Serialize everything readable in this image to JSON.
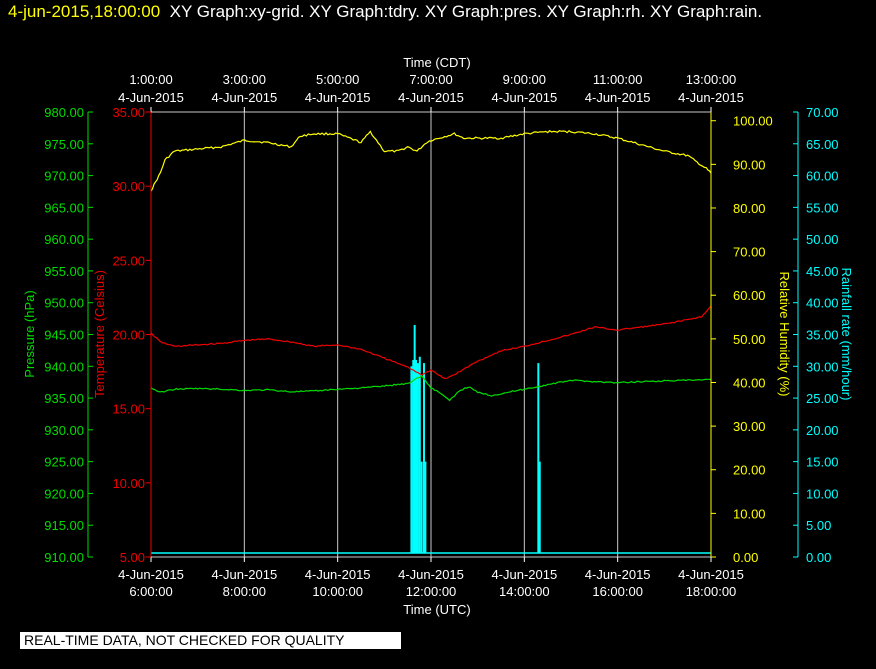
{
  "header": {
    "timestamp": "4-jun-2015,18:00:00",
    "graphs": "XY Graph:xy-grid.  XY Graph:tdry.  XY Graph:pres.  XY Graph:rh.  XY Graph:rain."
  },
  "footer": {
    "quality_notice": "REAL-TIME DATA, NOT CHECKED FOR QUALITY"
  },
  "chart_data": {
    "type": "line",
    "colors": {
      "pressure": "#00dd00",
      "temperature": "#ee0000",
      "humidity": "#ffff00",
      "rain": "#00ffff",
      "grid": "#c8c8c8"
    },
    "x_bottom": {
      "label": "Time (UTC)",
      "range_hours": [
        6,
        18
      ],
      "ticks": [
        {
          "date": "4-Jun-2015",
          "time": "6:00:00"
        },
        {
          "date": "4-Jun-2015",
          "time": "8:00:00"
        },
        {
          "date": "4-Jun-2015",
          "time": "10:00:00"
        },
        {
          "date": "4-Jun-2015",
          "time": "12:00:00"
        },
        {
          "date": "4-Jun-2015",
          "time": "14:00:00"
        },
        {
          "date": "4-Jun-2015",
          "time": "16:00:00"
        },
        {
          "date": "4-Jun-2015",
          "time": "18:00:00"
        }
      ]
    },
    "x_top": {
      "label": "Time (CDT)",
      "ticks": [
        {
          "date": "4-Jun-2015",
          "time": "1:00:00"
        },
        {
          "date": "4-Jun-2015",
          "time": "3:00:00"
        },
        {
          "date": "4-Jun-2015",
          "time": "5:00:00"
        },
        {
          "date": "4-Jun-2015",
          "time": "7:00:00"
        },
        {
          "date": "4-Jun-2015",
          "time": "9:00:00"
        },
        {
          "date": "4-Jun-2015",
          "time": "11:00:00"
        },
        {
          "date": "4-Jun-2015",
          "time": "13:00:00"
        }
      ]
    },
    "axes": {
      "pressure": {
        "label": "Pressure (hPa)",
        "range": [
          910,
          980
        ],
        "ticks": [
          "910.00",
          "915.00",
          "920.00",
          "925.00",
          "930.00",
          "935.00",
          "940.00",
          "945.00",
          "950.00",
          "955.00",
          "960.00",
          "965.00",
          "970.00",
          "975.00",
          "980.00"
        ]
      },
      "temperature": {
        "label": "Temperature (Celsius)",
        "range": [
          5,
          35
        ],
        "ticks": [
          "5.00",
          "10.00",
          "15.00",
          "20.00",
          "25.00",
          "30.00",
          "35.00"
        ]
      },
      "humidity": {
        "label": "Relative Humidity (%)",
        "range": [
          0,
          102
        ],
        "ticks": [
          "0.00",
          "10.00",
          "20.00",
          "30.00",
          "40.00",
          "50.00",
          "60.00",
          "70.00",
          "80.00",
          "90.00",
          "100.00"
        ]
      },
      "rain": {
        "label": "Rainfall rate (mm/hour)",
        "range": [
          0,
          70
        ],
        "ticks": [
          "0.00",
          "5.00",
          "10.00",
          "15.00",
          "20.00",
          "25.00",
          "30.00",
          "35.00",
          "40.00",
          "45.00",
          "50.00",
          "55.00",
          "60.00",
          "65.00",
          "70.00"
        ]
      }
    },
    "series": [
      {
        "key": "humidity",
        "x": [
          6.0,
          6.1,
          6.2,
          6.3,
          6.5,
          7.0,
          7.5,
          8.0,
          8.5,
          9.0,
          9.2,
          9.5,
          10.0,
          10.5,
          10.7,
          11.0,
          11.3,
          11.5,
          11.7,
          11.9,
          12.0,
          12.5,
          12.7,
          13.0,
          13.5,
          14.0,
          14.5,
          15.0,
          15.5,
          16.0,
          16.5,
          17.0,
          17.5,
          17.7,
          17.9,
          18.0
        ],
        "values": [
          84.0,
          86.0,
          88.0,
          91.0,
          93.0,
          93.5,
          94.0,
          95.5,
          95.0,
          94.0,
          96.5,
          97.0,
          97.0,
          95.0,
          97.5,
          93.0,
          93.0,
          94.0,
          93.0,
          95.0,
          95.5,
          97.0,
          96.0,
          96.0,
          96.0,
          97.0,
          97.5,
          97.5,
          97.0,
          96.0,
          94.5,
          93.0,
          92.0,
          90.5,
          89.0,
          88.0
        ]
      },
      {
        "key": "temperature",
        "x": [
          6.0,
          6.2,
          6.5,
          7.0,
          7.5,
          8.0,
          8.5,
          9.0,
          9.5,
          10.0,
          10.5,
          11.0,
          11.5,
          11.8,
          12.0,
          12.2,
          12.3,
          12.5,
          13.0,
          13.5,
          14.0,
          14.5,
          15.0,
          15.5,
          16.0,
          16.5,
          17.0,
          17.5,
          17.8,
          18.0
        ],
        "values": [
          20.1,
          19.5,
          19.2,
          19.3,
          19.4,
          19.6,
          19.7,
          19.5,
          19.2,
          19.3,
          19.0,
          18.4,
          17.8,
          17.3,
          17.6,
          17.2,
          17.0,
          17.3,
          18.2,
          18.9,
          19.2,
          19.6,
          20.0,
          20.5,
          20.3,
          20.5,
          20.7,
          21.0,
          21.2,
          21.9
        ]
      },
      {
        "key": "pressure",
        "x": [
          6.0,
          6.2,
          6.5,
          7.0,
          7.5,
          8.0,
          8.5,
          9.0,
          9.5,
          10.0,
          10.5,
          11.0,
          11.5,
          11.8,
          12.0,
          12.2,
          12.4,
          12.5,
          12.6,
          12.8,
          13.0,
          13.3,
          13.5,
          14.0,
          14.5,
          15.0,
          15.5,
          16.0,
          16.5,
          17.0,
          17.5,
          18.0
        ],
        "values": [
          936.6,
          935.9,
          936.4,
          936.5,
          936.4,
          936.2,
          936.3,
          936.0,
          936.1,
          936.4,
          936.6,
          936.9,
          937.3,
          938.5,
          936.6,
          935.8,
          934.6,
          935.3,
          936.1,
          936.8,
          935.9,
          935.4,
          935.7,
          936.4,
          937.1,
          937.8,
          937.6,
          937.4,
          937.6,
          937.7,
          937.8,
          937.9
        ]
      },
      {
        "key": "rain",
        "bars": [
          {
            "x": 11.58,
            "value": 30.0
          },
          {
            "x": 11.62,
            "value": 31.0
          },
          {
            "x": 11.65,
            "value": 36.5
          },
          {
            "x": 11.68,
            "value": 31.0
          },
          {
            "x": 11.72,
            "value": 30.5
          },
          {
            "x": 11.76,
            "value": 31.5
          },
          {
            "x": 11.8,
            "value": 15.0
          },
          {
            "x": 11.85,
            "value": 30.5
          },
          {
            "x": 11.88,
            "value": 15.0
          },
          {
            "x": 14.3,
            "value": 30.5
          },
          {
            "x": 14.33,
            "value": 15.0
          }
        ]
      }
    ]
  }
}
